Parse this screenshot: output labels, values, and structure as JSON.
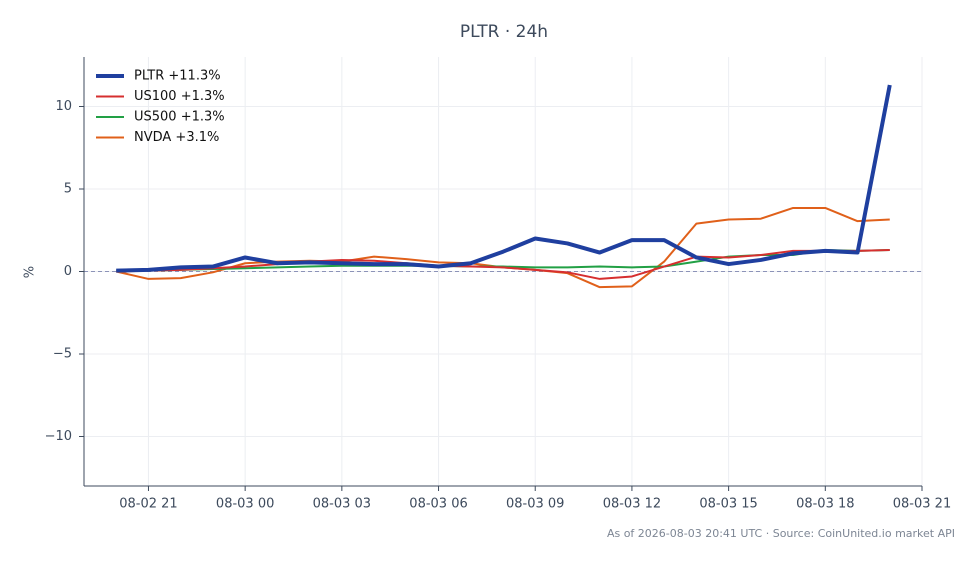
{
  "chart_data": {
    "type": "line",
    "title": "PLTR · 24h",
    "y_label": "%",
    "footer": "As of 2026-08-03 20:41 UTC · Source: CoinUnited.io market API",
    "x": [
      "08-02 20",
      "08-02 21",
      "08-02 22",
      "08-02 23",
      "08-03 00",
      "08-03 01",
      "08-03 02",
      "08-03 03",
      "08-03 04",
      "08-03 05",
      "08-03 06",
      "08-03 07",
      "08-03 08",
      "08-03 09",
      "08-03 10",
      "08-03 11",
      "08-03 12",
      "08-03 13",
      "08-03 14",
      "08-03 15",
      "08-03 16",
      "08-03 17",
      "08-03 18",
      "08-03 19",
      "08-03 20"
    ],
    "xlim": [
      "08-02 19",
      "08-03 21"
    ],
    "xticks": [
      "08-02 21",
      "08-03 00",
      "08-03 03",
      "08-03 06",
      "08-03 09",
      "08-03 12",
      "08-03 15",
      "08-03 18",
      "08-03 21"
    ],
    "ylim": [
      -13,
      13
    ],
    "yticks": [
      {
        "value": -10,
        "label": "−10"
      },
      {
        "value": -5,
        "label": "−5"
      },
      0,
      5,
      10
    ],
    "grid": true,
    "legend": "upper-left",
    "series": [
      {
        "name": "PLTR +11.3%",
        "color": "#1f3f9f",
        "width": 4,
        "values": [
          0.05,
          0.1,
          0.25,
          0.3,
          0.85,
          0.5,
          0.55,
          0.5,
          0.45,
          0.45,
          0.3,
          0.5,
          1.2,
          2.0,
          1.7,
          1.15,
          1.9,
          1.9,
          0.85,
          0.45,
          0.7,
          1.1,
          1.25,
          1.15,
          11.3
        ]
      },
      {
        "name": "US100 +1.3%",
        "color": "#d62f2f",
        "width": 2,
        "values": [
          0.0,
          0.05,
          0.1,
          0.2,
          0.3,
          0.45,
          0.6,
          0.7,
          0.65,
          0.5,
          0.35,
          0.3,
          0.25,
          0.1,
          -0.05,
          -0.45,
          -0.3,
          0.3,
          0.9,
          0.85,
          1.0,
          1.25,
          1.25,
          1.25,
          1.3
        ]
      },
      {
        "name": "US500 +1.3%",
        "color": "#22a045",
        "width": 2,
        "values": [
          0.05,
          0.05,
          0.1,
          0.15,
          0.2,
          0.25,
          0.3,
          0.35,
          0.35,
          0.35,
          0.35,
          0.3,
          0.3,
          0.25,
          0.25,
          0.3,
          0.25,
          0.3,
          0.6,
          0.9,
          1.0,
          1.0,
          1.3,
          1.25,
          1.3
        ]
      },
      {
        "name": "NVDA +3.1%",
        "color": "#e0601a",
        "width": 2,
        "values": [
          0.0,
          -0.45,
          -0.4,
          -0.05,
          0.5,
          0.6,
          0.65,
          0.6,
          0.9,
          0.75,
          0.55,
          0.5,
          0.25,
          0.1,
          -0.1,
          -0.95,
          -0.9,
          0.6,
          2.9,
          3.15,
          3.2,
          3.85,
          3.85,
          3.05,
          3.15
        ]
      }
    ]
  }
}
